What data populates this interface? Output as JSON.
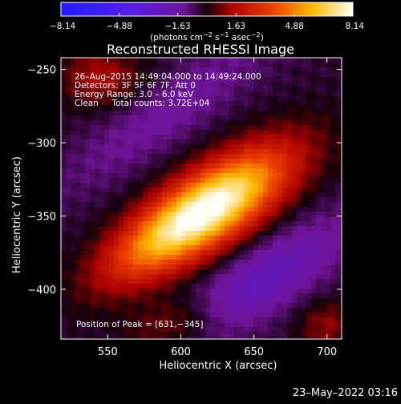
{
  "chart_data": {
    "type": "heatmap",
    "title": "Reconstructed RHESSI Image",
    "xlabel": "Heliocentric X (arcsec)",
    "ylabel": "Heliocentric Y (arcsec)",
    "xlim": [
      518,
      710
    ],
    "ylim": [
      -434,
      -242
    ],
    "x_ticks": [
      550,
      600,
      650,
      700
    ],
    "y_ticks": [
      -250,
      -300,
      -350,
      -400
    ],
    "x_tick_labels": [
      "550",
      "600",
      "650",
      "700"
    ],
    "y_tick_labels": [
      "−250",
      "−300",
      "−350",
      "−400"
    ],
    "colorbar": {
      "range": [
        -8.14,
        8.14
      ],
      "ticks": [
        -8.14,
        -4.88,
        -1.63,
        1.63,
        4.88,
        8.14
      ],
      "tick_labels": [
        "−8.14",
        "−4.88",
        "−1.63",
        "1.63",
        "4.88",
        "8.14"
      ],
      "unit_label": "(photons cm",
      "unit_sup1": "−2",
      "unit_mid": " s",
      "unit_sup2": "−1",
      "unit_mid2": " asec",
      "unit_sup3": "−2",
      "unit_end": ")"
    },
    "annotations": [
      "26–Aug–2015 14:49:04.000 to 14:49:24.000",
      "Detectors: 3F 5F 6F 7F, Att 0",
      "Energy Range: 3.0 – 6.0 keV",
      "Clean     Total counts: 3.72E+04"
    ],
    "peak_text": "Position of Peak = [631,−345]",
    "peak": {
      "x": 631,
      "y": -345,
      "value": 8.14
    },
    "sources": [
      {
        "x": 622,
        "y": -343,
        "amp": 8.14,
        "sigma_long": 42,
        "sigma_short": 17,
        "angle_deg": 33
      },
      {
        "x": 580,
        "y": -370,
        "amp": 2.3,
        "sigma_long": 34,
        "sigma_short": 14,
        "angle_deg": 33
      },
      {
        "x": 545,
        "y": -255,
        "amp": 1.7,
        "sigma_long": 20,
        "sigma_short": 14,
        "angle_deg": 0
      },
      {
        "x": 597,
        "y": -424,
        "amp": 1.6,
        "sigma_long": 24,
        "sigma_short": 12,
        "angle_deg": 15
      },
      {
        "x": 700,
        "y": -425,
        "amp": 1.4,
        "sigma_long": 14,
        "sigma_short": 12,
        "angle_deg": 0
      },
      {
        "x": 590,
        "y": -280,
        "amp": -1.2,
        "sigma_long": 60,
        "sigma_short": 15,
        "angle_deg": 35
      },
      {
        "x": 655,
        "y": -395,
        "amp": -2.2,
        "sigma_long": 48,
        "sigma_short": 16,
        "angle_deg": 33
      }
    ],
    "baseline": -0.35,
    "grid": false
  },
  "footer": {
    "date": "23–May–2022 03:16"
  }
}
